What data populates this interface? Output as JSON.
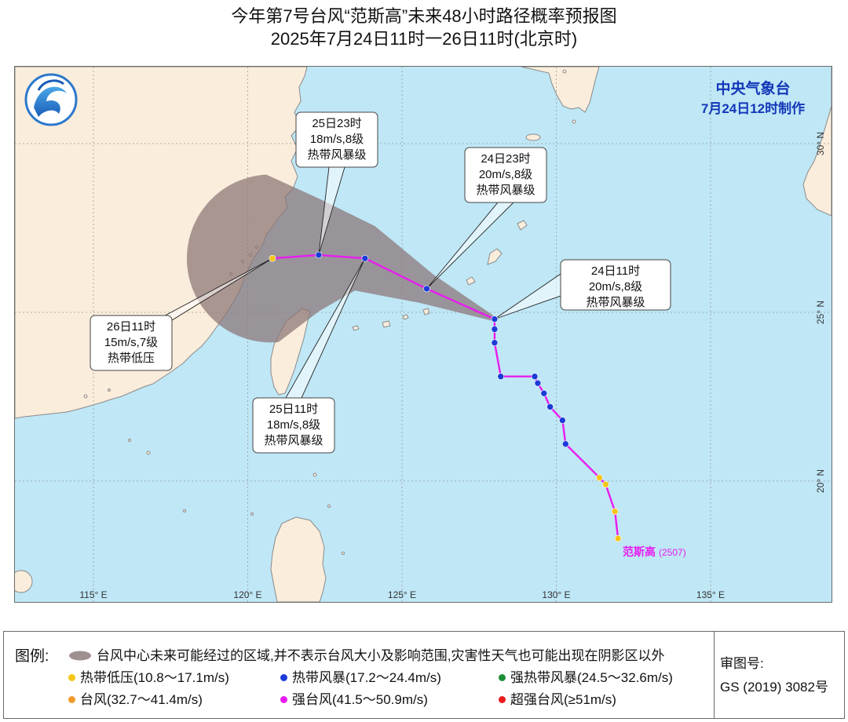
{
  "header": {
    "title": "今年第7号台风“范斯高”未来48小时路径概率预报图",
    "subtitle": "2025年7月24日11时一26日11时(北京时)"
  },
  "agency": {
    "name": "中央气象台",
    "issued": "7月24日12时制作"
  },
  "storm_label": {
    "name": "范斯高",
    "code": "(2507)"
  },
  "grid": {
    "lon_labels": [
      "115° E",
      "120° E",
      "125° E",
      "130° E",
      "135° E"
    ],
    "lat_labels": [
      "30° N",
      "25° N",
      "20° N"
    ]
  },
  "forecast_callouts": [
    {
      "time": "24日11时",
      "wind": "20m/s,8级",
      "category": "热带风暴级"
    },
    {
      "time": "24日23时",
      "wind": "20m/s,8级",
      "category": "热带风暴级"
    },
    {
      "time": "25日11时",
      "wind": "18m/s,8级",
      "category": "热带风暴级"
    },
    {
      "time": "25日23时",
      "wind": "18m/s,8级",
      "category": "热带风暴级"
    },
    {
      "time": "26日11时",
      "wind": "15m/s,7级",
      "category": "热带低压"
    }
  ],
  "track": {
    "past_color": "#e81cf0",
    "forecast_color": "#e81cf0",
    "cone_color": "#8a7474",
    "past_points": [
      {
        "lon": 132.0,
        "lat": 18.3,
        "intensity": "TD"
      },
      {
        "lon": 131.9,
        "lat": 19.1,
        "intensity": "TD"
      },
      {
        "lon": 131.6,
        "lat": 19.9,
        "intensity": "TD"
      },
      {
        "lon": 131.4,
        "lat": 20.1,
        "intensity": "TD"
      },
      {
        "lon": 130.3,
        "lat": 21.1,
        "intensity": "TS"
      },
      {
        "lon": 130.2,
        "lat": 21.8,
        "intensity": "TS"
      },
      {
        "lon": 129.8,
        "lat": 22.2,
        "intensity": "TS"
      },
      {
        "lon": 129.6,
        "lat": 22.6,
        "intensity": "TS"
      },
      {
        "lon": 129.4,
        "lat": 22.9,
        "intensity": "TS"
      },
      {
        "lon": 129.3,
        "lat": 23.1,
        "intensity": "TS"
      },
      {
        "lon": 128.2,
        "lat": 23.1,
        "intensity": "TS"
      },
      {
        "lon": 128.0,
        "lat": 24.1,
        "intensity": "TS"
      },
      {
        "lon": 128.0,
        "lat": 24.5,
        "intensity": "TS"
      },
      {
        "lon": 128.0,
        "lat": 24.8,
        "intensity": "TS"
      }
    ],
    "forecast_points": [
      {
        "lon": 128.0,
        "lat": 24.8,
        "intensity": "TS"
      },
      {
        "lon": 125.8,
        "lat": 25.7,
        "intensity": "TS"
      },
      {
        "lon": 123.8,
        "lat": 26.6,
        "intensity": "TS"
      },
      {
        "lon": 122.3,
        "lat": 26.7,
        "intensity": "TS"
      },
      {
        "lon": 120.8,
        "lat": 26.6,
        "intensity": "TD"
      }
    ]
  },
  "legend": {
    "label": "图例:",
    "cone_text": "台风中心未来可能经过的区域,并不表示台风大小及影响范围,灾害性天气也可能出现在阴影区以外",
    "items": [
      {
        "color": "#f5c518",
        "label": "热带低压(10.8～17.1m/s)"
      },
      {
        "color": "#1a3bd6",
        "label": "热带风暴(17.2～24.4m/s)"
      },
      {
        "color": "#1f8f3a",
        "label": "强热带风暴(24.5～32.6m/s)"
      },
      {
        "color": "#f39a2c",
        "label": "台风(32.7～41.4m/s)"
      },
      {
        "color": "#e81cf0",
        "label": "强台风(41.5～50.9m/s)"
      },
      {
        "color": "#e81c1c",
        "label": "超强台风(≥51m/s)"
      }
    ]
  },
  "approval": {
    "label": "审图号:",
    "number": "GS (2019) 3082号"
  },
  "colors": {
    "sea": "#bfe7f6",
    "land": "#fbeddc",
    "coast": "#8a8a8a"
  }
}
